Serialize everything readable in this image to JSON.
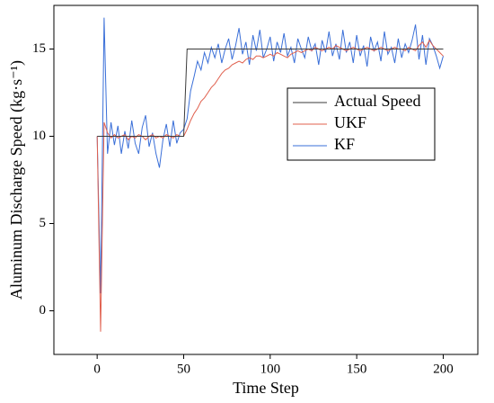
{
  "chart_data": {
    "type": "line",
    "xlabel": "Time Step",
    "ylabel": "Aluminum Discharge Speed (kg·s⁻¹)",
    "x": [
      0,
      2,
      4,
      6,
      8,
      10,
      12,
      14,
      16,
      18,
      20,
      22,
      24,
      26,
      28,
      30,
      32,
      34,
      36,
      38,
      40,
      42,
      44,
      46,
      48,
      50,
      52,
      54,
      56,
      58,
      60,
      62,
      64,
      66,
      68,
      70,
      72,
      74,
      76,
      78,
      80,
      82,
      84,
      86,
      88,
      90,
      92,
      94,
      96,
      98,
      100,
      102,
      104,
      106,
      108,
      110,
      112,
      114,
      116,
      118,
      120,
      122,
      124,
      126,
      128,
      130,
      132,
      134,
      136,
      138,
      140,
      142,
      144,
      146,
      148,
      150,
      152,
      154,
      156,
      158,
      160,
      162,
      164,
      166,
      168,
      170,
      172,
      174,
      176,
      178,
      180,
      182,
      184,
      186,
      188,
      190,
      192,
      194,
      196,
      198,
      200
    ],
    "series": [
      {
        "name": "Actual Speed",
        "color": "#3a3a3a",
        "values": [
          10,
          10,
          10,
          10,
          10,
          10,
          10,
          10,
          10,
          10,
          10,
          10,
          10,
          10,
          10,
          10,
          10,
          10,
          10,
          10,
          10,
          10,
          10,
          10,
          10,
          10,
          15,
          15,
          15,
          15,
          15,
          15,
          15,
          15,
          15,
          15,
          15,
          15,
          15,
          15,
          15,
          15,
          15,
          15,
          15,
          15,
          15,
          15,
          15,
          15,
          15,
          15,
          15,
          15,
          15,
          15,
          15,
          15,
          15,
          15,
          15,
          15,
          15,
          15,
          15,
          15,
          15,
          15,
          15,
          15,
          15,
          15,
          15,
          15,
          15,
          15,
          15,
          15,
          15,
          15,
          15,
          15,
          15,
          15,
          15,
          15,
          15,
          15,
          15,
          15,
          15,
          15,
          15,
          15,
          15,
          15,
          15,
          15,
          15,
          15,
          15
        ]
      },
      {
        "name": "UKF",
        "color": "#e0604e",
        "values": [
          10,
          -1.2,
          10.8,
          10.2,
          9.9,
          10.1,
          9.9,
          10.0,
          10.1,
          9.8,
          10.0,
          9.9,
          10.1,
          10.0,
          9.8,
          10.0,
          10.1,
          9.9,
          10.0,
          9.9,
          10.1,
          10.0,
          9.9,
          10.1,
          10.0,
          10.0,
          10.4,
          10.9,
          11.3,
          11.6,
          12.0,
          12.2,
          12.5,
          12.8,
          13.0,
          13.3,
          13.6,
          13.8,
          13.9,
          14.1,
          14.2,
          14.3,
          14.2,
          14.4,
          14.5,
          14.4,
          14.6,
          14.6,
          14.5,
          14.6,
          14.7,
          14.6,
          14.8,
          14.7,
          14.6,
          14.5,
          14.7,
          14.8,
          14.9,
          14.8,
          14.9,
          15.0,
          14.9,
          15.1,
          15.0,
          14.9,
          15.0,
          15.1,
          15.0,
          15.2,
          15.1,
          15.0,
          14.9,
          15.0,
          15.1,
          15.0,
          14.9,
          15.0,
          15.1,
          15.0,
          14.9,
          15.0,
          15.1,
          15.0,
          14.9,
          15.0,
          15.1,
          15.0,
          15.0,
          14.9,
          15.1,
          15.0,
          14.9,
          15.2,
          15.4,
          15.1,
          15.5,
          15.2,
          15.0,
          14.8,
          14.6
        ]
      },
      {
        "name": "KF",
        "color": "#3a6fd8",
        "values": [
          10,
          1.0,
          16.8,
          9.0,
          10.8,
          9.5,
          10.6,
          9.0,
          10.3,
          9.3,
          10.9,
          9.6,
          9.0,
          10.5,
          11.2,
          9.4,
          10.2,
          9.0,
          8.2,
          9.8,
          10.7,
          9.4,
          10.9,
          9.6,
          10.2,
          10.4,
          11.0,
          12.6,
          13.4,
          14.3,
          13.8,
          14.8,
          14.2,
          15.1,
          14.5,
          15.3,
          14.2,
          15.0,
          15.6,
          14.4,
          15.2,
          16.2,
          14.7,
          15.4,
          14.1,
          15.8,
          14.9,
          16.1,
          14.5,
          15.0,
          15.7,
          14.3,
          15.4,
          14.8,
          15.9,
          14.6,
          15.1,
          14.2,
          15.6,
          15.0,
          14.5,
          15.7,
          14.9,
          15.3,
          14.1,
          15.5,
          14.8,
          16.0,
          14.6,
          15.3,
          14.4,
          16.1,
          14.8,
          15.4,
          14.2,
          15.8,
          14.6,
          15.2,
          14.0,
          15.7,
          14.9,
          15.4,
          14.3,
          16.0,
          14.7,
          15.1,
          14.2,
          15.6,
          14.5,
          15.3,
          14.8,
          15.5,
          16.4,
          14.4,
          15.8,
          14.1,
          15.6,
          15.2,
          14.6,
          13.9,
          14.6
        ]
      }
    ],
    "xlim": [
      -25,
      220
    ],
    "xticks": [
      0,
      50,
      100,
      150,
      200
    ],
    "ylim": [
      -2.5,
      17.5
    ],
    "yticks": [
      0,
      5,
      10,
      15
    ],
    "legend": "upper right"
  }
}
